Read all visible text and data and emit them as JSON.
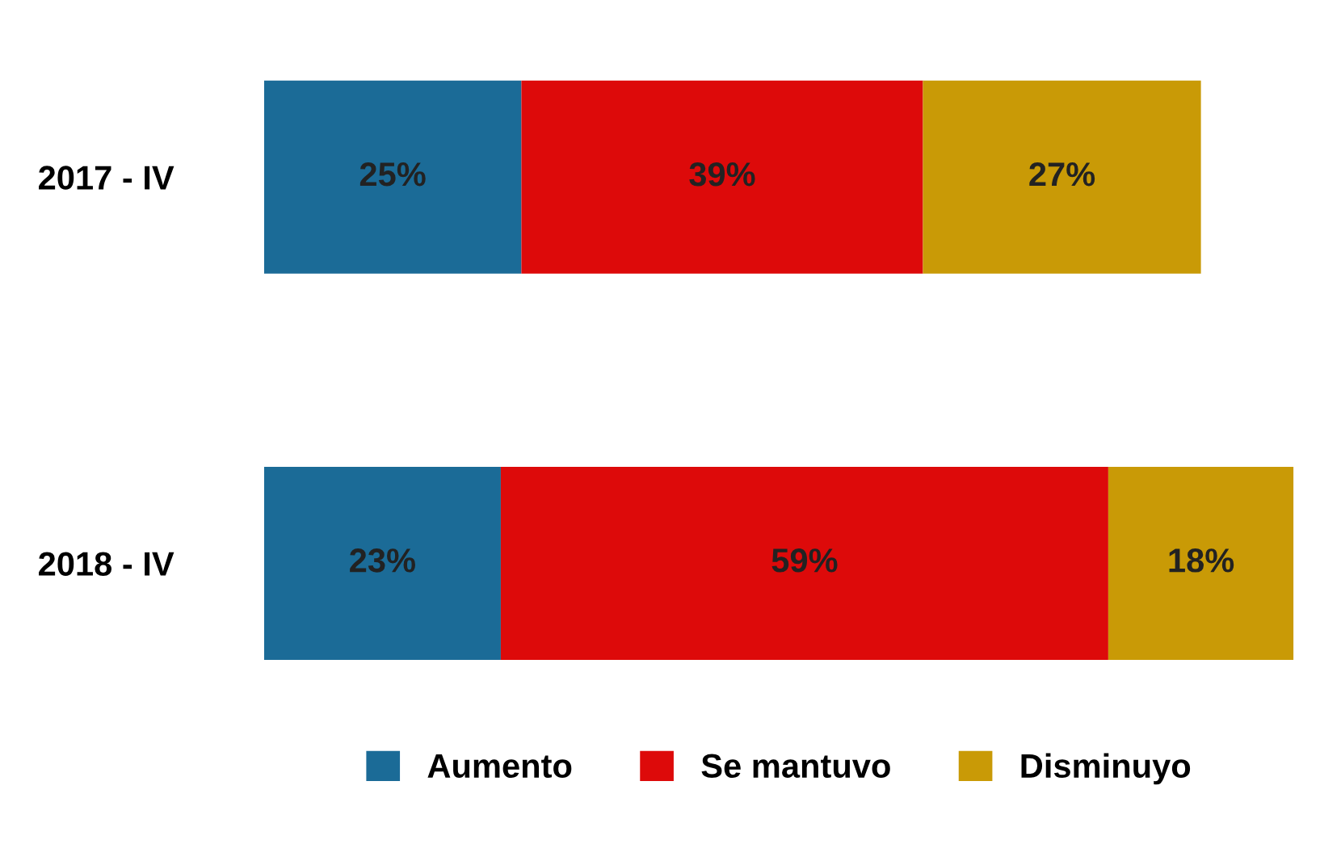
{
  "chart_data": {
    "type": "bar",
    "orientation": "horizontal",
    "stacked": true,
    "categories": [
      "2017 - IV",
      "2018 - IV"
    ],
    "series": [
      {
        "name": "Aumento",
        "color": "#1b6b97",
        "values": [
          25,
          23
        ],
        "value_labels": [
          "25%",
          "23%"
        ]
      },
      {
        "name": "Se mantuvo",
        "color": "#dd0a0a",
        "values": [
          39,
          59
        ],
        "value_labels": [
          "39%",
          "59%"
        ]
      },
      {
        "name": "Disminuyo",
        "color": "#c99a06",
        "values": [
          27,
          18
        ],
        "value_labels": [
          "27%",
          "18%"
        ]
      }
    ],
    "legend": "bottom",
    "grid": false
  }
}
